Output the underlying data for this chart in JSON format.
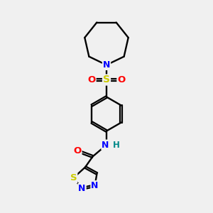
{
  "background_color": "#f0f0f0",
  "atom_colors": {
    "C": "#000000",
    "N": "#0000ff",
    "O": "#ff0000",
    "S": "#cccc00",
    "H": "#008888"
  },
  "bond_color": "#000000",
  "figsize": [
    3.0,
    3.0
  ],
  "dpi": 100,
  "bond_lw": 1.6,
  "font_size": 8.5
}
